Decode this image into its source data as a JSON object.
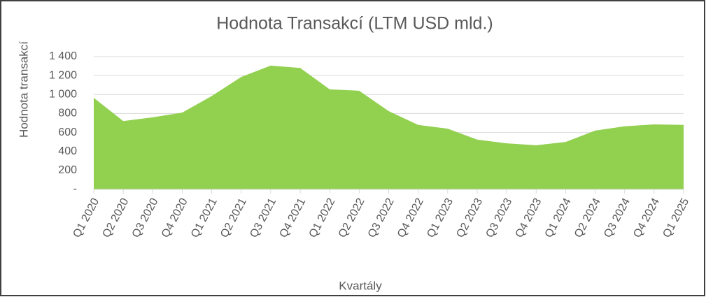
{
  "chart_data": {
    "type": "area",
    "title": "Hodnota Transakcí (LTM USD mld.)",
    "x_label": "Kvartály",
    "y_label": "Hodnota transakcí",
    "categories": [
      "Q1 2020",
      "Q2 2020",
      "Q3 2020",
      "Q4 2020",
      "Q1 2021",
      "Q2 2021",
      "Q3 2021",
      "Q4 2021",
      "Q1 2022",
      "Q2 2022",
      "Q3 2022",
      "Q4 2022",
      "Q1 2023",
      "Q2 2023",
      "Q3 2023",
      "Q4 2023",
      "Q1 2024",
      "Q2 2024",
      "Q3 2024",
      "Q4 2024",
      "Q1 2025"
    ],
    "values": [
      965,
      720,
      760,
      810,
      985,
      1185,
      1305,
      1280,
      1055,
      1040,
      825,
      680,
      640,
      525,
      485,
      465,
      500,
      620,
      665,
      685,
      680
    ],
    "color": "#92d050",
    "ylim": [
      0,
      1400
    ],
    "yticks": [
      {
        "value": 0,
        "label": "-"
      },
      200,
      400,
      600,
      800,
      {
        "value": 1000,
        "label": "1 000"
      },
      {
        "value": 1200,
        "label": "1 200"
      },
      {
        "value": 1400,
        "label": "1 400"
      }
    ],
    "grid": true
  }
}
